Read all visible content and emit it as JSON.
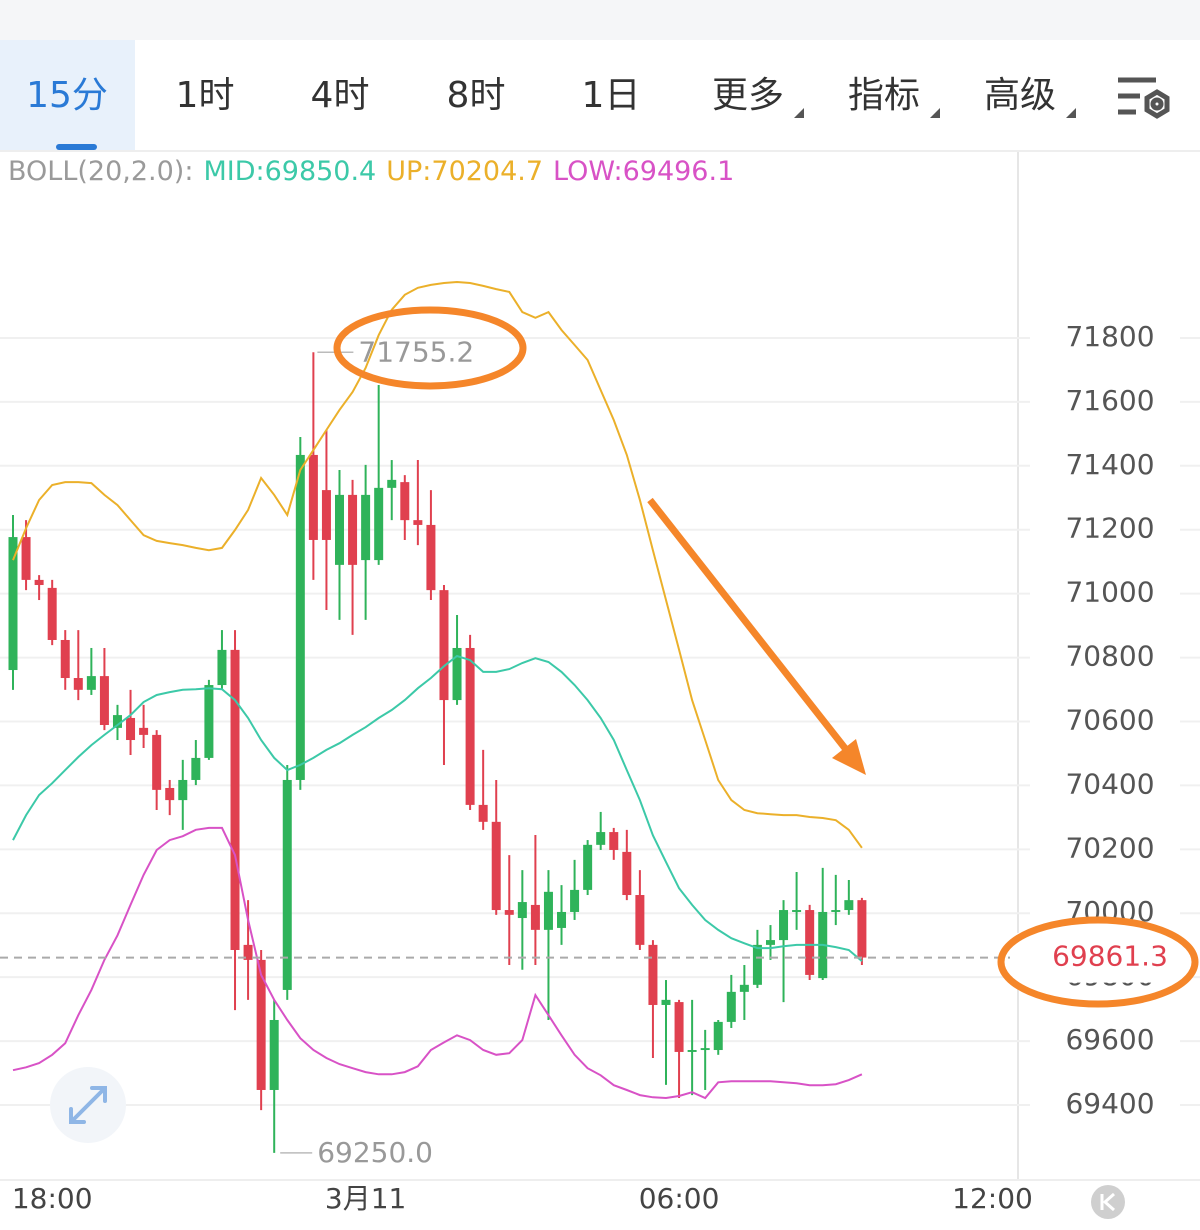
{
  "tabs": [
    "15分",
    "1时",
    "4时",
    "8时",
    "1日",
    "更多",
    "指标",
    "高级"
  ],
  "selected_tab": "15分",
  "chart_data": {
    "type": "candlestick",
    "indicator": "BOLL(20,2.0):",
    "indicator_color": "#9a9a9a",
    "categories": [
      null,
      null,
      null,
      "18:00",
      null,
      null,
      null,
      null,
      null,
      null,
      null,
      null,
      null,
      null,
      null,
      null,
      null,
      null,
      null,
      null,
      null,
      null,
      null,
      null,
      null,
      null,
      null,
      "3月11",
      null,
      null,
      null,
      null,
      null,
      null,
      null,
      null,
      null,
      null,
      null,
      null,
      null,
      null,
      null,
      null,
      null,
      null,
      null,
      null,
      null,
      null,
      null,
      "06:00",
      null,
      null,
      null,
      null,
      null,
      null,
      null,
      null,
      null,
      null,
      null,
      null,
      null,
      null,
      null,
      null,
      null,
      null,
      null,
      null,
      null,
      null,
      null,
      "12:00",
      null
    ],
    "open": [
      70761,
      71177,
      71043,
      71018,
      70855,
      70736,
      70699,
      70742,
      70580,
      70611,
      70580,
      70558,
      70392,
      70354,
      70417,
      70486,
      70714,
      70824,
      69901,
      69854,
      69447,
      69760,
      70417,
      71434,
      71324,
      71090,
      71309,
      71105,
      71105,
      71331,
      71349,
      71230,
      71215,
      71011,
      70667,
      70830,
      70339,
      70286,
      70010,
      69985,
      70026,
      69948,
      69954,
      70004,
      70073,
      70214,
      70254,
      70192,
      70057,
      69901,
      69713,
      69722,
      69566,
      69572,
      69572,
      69660,
      69754,
      69776,
      69901,
      69916,
      70004,
      70010,
      69797,
      70004,
      70010,
      70041,
      null,
      null,
      null,
      null,
      null,
      null,
      null,
      null,
      null,
      null,
      null
    ],
    "high": [
      71246,
      71230,
      71058,
      71043,
      70886,
      70886,
      70830,
      70830,
      70652,
      70699,
      70652,
      70573,
      70417,
      70480,
      70542,
      70730,
      70886,
      70886,
      70041,
      69885,
      69729,
      70464,
      71490,
      71755.2,
      71512,
      71387,
      71356,
      71403,
      71653,
      71418,
      71371,
      71418,
      71324,
      71027,
      70933,
      70871,
      70511,
      70417,
      70182,
      70135,
      70245,
      70135,
      70088,
      70167,
      70229,
      70317,
      70267,
      70261,
      70135,
      69916,
      69791,
      69729,
      69729,
      69635,
      69666,
      69807,
      69838,
      69948,
      69963,
      70041,
      70129,
      70026,
      70142,
      70120,
      70104,
      70048,
      null,
      null,
      null,
      null,
      null,
      null,
      null,
      null,
      null,
      null,
      null
    ],
    "low": [
      70699,
      71011,
      70980,
      70839,
      70699,
      70667,
      70683,
      70573,
      70542,
      70495,
      70517,
      70323,
      70307,
      70261,
      70401,
      70480,
      70699,
      69697,
      69729,
      69384,
      69250.0,
      69729,
      70386,
      71043,
      70949,
      70918,
      70871,
      70918,
      71090,
      71230,
      71168,
      71152,
      70980,
      70464,
      70652,
      70323,
      70261,
      69995,
      69838,
      69823,
      69838,
      69666,
      69901,
      69979,
      70057,
      70198,
      70167,
      70041,
      69885,
      69547,
      69463,
      69422,
      69431,
      69447,
      69557,
      69641,
      69666,
      69766,
      69854,
      69722,
      69948,
      69791,
      69791,
      69963,
      69995,
      69838,
      null,
      null,
      null,
      null,
      null,
      null,
      null,
      null,
      null,
      null,
      null
    ],
    "close": [
      71177,
      71043,
      71027,
      70855,
      70736,
      70699,
      70742,
      70589,
      70620,
      70542,
      70558,
      70386,
      70354,
      70417,
      70486,
      70714,
      70824,
      69885,
      69854,
      69447,
      69666,
      70417,
      71434,
      71168,
      71168,
      71309,
      71090,
      71309,
      71331,
      71356,
      71230,
      71215,
      71011,
      70667,
      70830,
      70339,
      70286,
      70010,
      69995,
      70035,
      69948,
      70067,
      70004,
      70073,
      70214,
      70254,
      70198,
      70057,
      69901,
      69713,
      69729,
      69566,
      69572,
      69578,
      69660,
      69754,
      69776,
      69901,
      69916,
      70010,
      70010,
      69807,
      70004,
      70010,
      70041,
      69861.3,
      null,
      null,
      null,
      null,
      null,
      null,
      null,
      null,
      null,
      null,
      null
    ],
    "up_color": "#2fb35a",
    "down_color": "#e0404f",
    "series": [
      {
        "name": "MID:69850.4",
        "color": "#3cc9a8",
        "values": [
          70229,
          70307,
          70370,
          70407,
          70448,
          70489,
          70526,
          70558,
          70589,
          70620,
          70661,
          70683,
          70692,
          70699,
          70701,
          70704,
          70701,
          70667,
          70611,
          70542,
          70486,
          70448,
          70464,
          70486,
          70511,
          70532,
          70558,
          70582,
          70611,
          70636,
          70667,
          70704,
          70736,
          70773,
          70805,
          70792,
          70755,
          70755,
          70764,
          70783,
          70798,
          70786,
          70755,
          70714,
          70667,
          70611,
          70542,
          70448,
          70354,
          70244,
          70160,
          70078,
          70026,
          69979,
          69948,
          69922,
          69906,
          69891,
          69891,
          69897,
          69901,
          69901,
          69901,
          69894,
          69885,
          69850.4,
          null,
          null,
          null,
          null,
          null,
          null,
          null,
          null,
          null,
          null,
          null
        ]
      },
      {
        "name": "UP:70204.7",
        "color": "#ebb02a",
        "values": [
          71105,
          71205,
          71293,
          71340,
          71349,
          71349,
          71346,
          71309,
          71277,
          71230,
          71183,
          71165,
          71158,
          71152,
          71143,
          71136,
          71143,
          71199,
          71262,
          71362,
          71309,
          71246,
          71387,
          71449,
          71512,
          71575,
          71631,
          71706,
          71809,
          71888,
          71935,
          71957,
          71966,
          71972,
          71975,
          71972,
          71963,
          71953,
          71944,
          71881,
          71863,
          71881,
          71825,
          71778,
          71731,
          71637,
          71543,
          71434,
          71293,
          71136,
          70980,
          70824,
          70667,
          70542,
          70417,
          70354,
          70323,
          70313,
          70310,
          70307,
          70307,
          70301,
          70298,
          70291,
          70261,
          70204.7,
          null,
          null,
          null,
          null,
          null,
          null,
          null,
          null,
          null,
          null,
          null
        ]
      },
      {
        "name": "LOW:69496.1",
        "color": "#d852c6",
        "values": [
          69509,
          69518,
          69531,
          69557,
          69593,
          69681,
          69760,
          69854,
          69931,
          70026,
          70120,
          70198,
          70229,
          70241,
          70261,
          70267,
          70267,
          70182,
          69979,
          69807,
          69729,
          69666,
          69609,
          69572,
          69547,
          69528,
          69515,
          69503,
          69496,
          69496,
          69503,
          69521,
          69572,
          69596,
          69618,
          69603,
          69572,
          69557,
          69562,
          69603,
          69744,
          69681,
          69618,
          69557,
          69515,
          69493,
          69462,
          69447,
          69431,
          69424,
          69422,
          69428,
          69440,
          69422,
          69471,
          69474,
          69474,
          69474,
          69474,
          69471,
          69468,
          69462,
          69462,
          69465,
          69478,
          69496.1,
          null,
          null,
          null,
          null,
          null,
          null,
          null,
          null,
          null,
          null,
          null
        ]
      }
    ],
    "ylim": [
      69160,
      72370
    ],
    "yticks": [
      69400,
      69600,
      69800,
      70000,
      70200,
      70400,
      70600,
      70800,
      71000,
      71200,
      71400,
      71600,
      71800
    ],
    "grid": true,
    "max_label": "71755.2",
    "min_label": "69250.0",
    "last_label": "69861.3"
  }
}
